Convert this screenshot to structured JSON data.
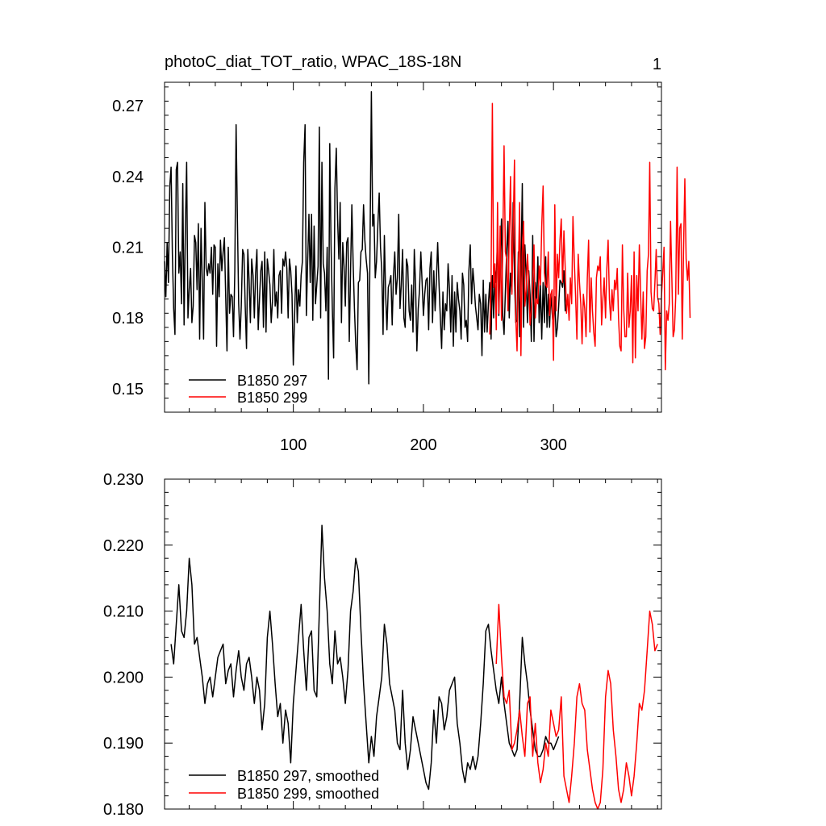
{
  "chart_data": [
    {
      "type": "line",
      "title": "photoC_diat_TOT_ratio, WPAC_18S-18N",
      "corner_label": "1",
      "xlim": [
        1,
        383
      ],
      "ylim": [
        0.14,
        0.28
      ],
      "x_ticks": [
        100,
        200,
        300
      ],
      "x_tick_labels": [
        "100",
        "200",
        "300"
      ],
      "y_ticks": [
        0.15,
        0.18,
        0.21,
        0.24,
        0.27
      ],
      "y_tick_labels": [
        "0.15",
        "0.18",
        "0.21",
        "0.24",
        "0.27"
      ],
      "legend_position": "bottom-left",
      "series": [
        {
          "name": "B1850 297",
          "color": "#000000",
          "x_start": 1,
          "values": [
            0.204,
            0.189,
            0.212,
            0.195,
            0.236,
            0.244,
            0.207,
            0.184,
            0.173,
            0.243,
            0.246,
            0.199,
            0.208,
            0.186,
            0.237,
            0.177,
            0.218,
            0.246,
            0.18,
            0.192,
            0.201,
            0.178,
            0.185,
            0.215,
            0.212,
            0.192,
            0.22,
            0.171,
            0.218,
            0.195,
            0.171,
            0.229,
            0.201,
            0.198,
            0.203,
            0.199,
            0.21,
            0.19,
            0.211,
            0.21,
            0.168,
            0.203,
            0.189,
            0.213,
            0.2,
            0.208,
            0.214,
            0.189,
            0.166,
            0.21,
            0.182,
            0.19,
            0.189,
            0.172,
            0.2,
            0.262,
            0.222,
            0.186,
            0.171,
            0.185,
            0.209,
            0.207,
            0.185,
            0.167,
            0.209,
            0.196,
            0.178,
            0.205,
            0.198,
            0.18,
            0.199,
            0.209,
            0.175,
            0.188,
            0.2,
            0.204,
            0.176,
            0.208,
            0.174,
            0.205,
            0.2,
            0.194,
            0.178,
            0.187,
            0.209,
            0.185,
            0.191,
            0.18,
            0.198,
            0.2,
            0.182,
            0.205,
            0.202,
            0.208,
            0.201,
            0.18,
            0.205,
            0.2,
            0.19,
            0.16,
            0.182,
            0.202,
            0.178,
            0.192,
            0.185,
            0.198,
            0.204,
            0.246,
            0.262,
            0.181,
            0.204,
            0.224,
            0.195,
            0.224,
            0.179,
            0.219,
            0.186,
            0.194,
            0.202,
            0.261,
            0.18,
            0.246,
            0.203,
            0.199,
            0.183,
            0.21,
            0.154,
            0.254,
            0.211,
            0.184,
            0.163,
            0.235,
            0.252,
            0.222,
            0.205,
            0.229,
            0.178,
            0.212,
            0.202,
            0.185,
            0.212,
            0.214,
            0.17,
            0.2,
            0.228,
            0.203,
            0.184,
            0.169,
            0.158,
            0.195,
            0.196,
            0.208,
            0.209,
            0.228,
            0.213,
            0.205,
            0.199,
            0.152,
            0.214,
            0.276,
            0.219,
            0.224,
            0.197,
            0.204,
            0.22,
            0.233,
            0.21,
            0.2,
            0.173,
            0.215,
            0.19,
            0.175,
            0.193,
            0.195,
            0.198,
            0.177,
            0.198,
            0.208,
            0.19,
            0.197,
            0.224,
            0.184,
            0.194,
            0.209,
            0.18,
            0.176,
            0.205,
            0.202,
            0.183,
            0.179,
            0.194,
            0.174,
            0.209,
            0.194,
            0.166,
            0.184,
            0.192,
            0.208,
            0.195,
            0.181,
            0.19,
            0.196,
            0.197,
            0.175,
            0.201,
            0.208,
            0.178,
            0.2,
            0.183,
            0.196,
            0.212,
            0.194,
            0.18,
            0.167,
            0.191,
            0.175,
            0.186,
            0.183,
            0.203,
            0.192,
            0.174,
            0.198,
            0.168,
            0.191,
            0.174,
            0.195,
            0.188,
            0.183,
            0.171,
            0.199,
            0.194,
            0.176,
            0.179,
            0.17,
            0.2,
            0.211,
            0.186,
            0.201,
            0.194,
            0.185,
            0.18,
            0.175,
            0.19,
            0.186,
            0.164,
            0.196,
            0.174,
            0.19,
            0.174,
            0.186,
            0.195,
            0.171,
            0.198,
            0.18,
            0.201,
            0.195,
            0.215,
            0.181,
            0.205,
            0.222,
            0.181,
            0.173,
            0.191,
            0.208,
            0.221,
            0.18,
            0.199,
            0.191,
            0.229,
            0.197,
            0.178,
            0.179,
            0.208,
            0.172,
            0.199,
            0.237,
            0.176,
            0.211,
            0.198,
            0.178,
            0.2,
            0.19,
            0.17,
            0.215,
            0.17,
            0.195,
            0.187,
            0.206,
            0.178,
            0.194,
            0.171,
            0.195,
            0.178,
            0.206,
            0.176,
            0.19,
            0.176,
            0.19,
            0.182,
            0.175,
            0.189,
            0.172,
            0.176,
            0.185,
            0.196,
            0.195,
            0.193,
            0.2,
            0.183,
            0.186
          ]
        },
        {
          "name": "B1850 299",
          "color": "#ff0000",
          "x_start": 251,
          "values": [
            0.173,
            0.196,
            0.271,
            0.193,
            0.203,
            0.175,
            0.229,
            0.182,
            0.219,
            0.179,
            0.211,
            0.253,
            0.208,
            0.205,
            0.183,
            0.216,
            0.24,
            0.19,
            0.218,
            0.247,
            0.18,
            0.166,
            0.199,
            0.229,
            0.164,
            0.208,
            0.221,
            0.185,
            0.192,
            0.207,
            0.196,
            0.177,
            0.183,
            0.196,
            0.211,
            0.18,
            0.188,
            0.186,
            0.202,
            0.194,
            0.219,
            0.236,
            0.199,
            0.194,
            0.193,
            0.208,
            0.181,
            0.19,
            0.192,
            0.162,
            0.228,
            0.183,
            0.207,
            0.197,
            0.213,
            0.222,
            0.195,
            0.217,
            0.201,
            0.182,
            0.19,
            0.179,
            0.197,
            0.186,
            0.223,
            0.204,
            0.189,
            0.171,
            0.207,
            0.195,
            0.186,
            0.169,
            0.19,
            0.184,
            0.172,
            0.197,
            0.213,
            0.174,
            0.197,
            0.183,
            0.174,
            0.168,
            0.197,
            0.202,
            0.2,
            0.206,
            0.177,
            0.188,
            0.197,
            0.18,
            0.201,
            0.213,
            0.188,
            0.179,
            0.192,
            0.183,
            0.196,
            0.192,
            0.201,
            0.18,
            0.168,
            0.166,
            0.211,
            0.184,
            0.172,
            0.172,
            0.199,
            0.176,
            0.183,
            0.198,
            0.161,
            0.208,
            0.163,
            0.198,
            0.183,
            0.211,
            0.19,
            0.171,
            0.191,
            0.167,
            0.172,
            0.2,
            0.207,
            0.246,
            0.191,
            0.184,
            0.183,
            0.195,
            0.209,
            0.189,
            0.186,
            0.173,
            0.189,
            0.199,
            0.21,
            0.158,
            0.183,
            0.179,
            0.186,
            0.221,
            0.197,
            0.172,
            0.175,
            0.189,
            0.244,
            0.19,
            0.218,
            0.22,
            0.171,
            0.209,
            0.239,
            0.205,
            0.196,
            0.204,
            0.18
          ]
        }
      ]
    },
    {
      "type": "line",
      "title": "",
      "xlim": [
        1,
        383
      ],
      "ylim": [
        0.18,
        0.23
      ],
      "x_ticks": [
        100,
        200,
        300
      ],
      "x_tick_labels": [
        "",
        "",
        ""
      ],
      "y_ticks": [
        0.18,
        0.19,
        0.2,
        0.21,
        0.22,
        0.23
      ],
      "y_tick_labels": [
        "0.180",
        "0.190",
        "0.200",
        "0.210",
        "0.220",
        "0.230"
      ],
      "legend_position": "bottom-left",
      "series": [
        {
          "name": "B1850 297, smoothed",
          "color": "#000000",
          "x": [
            6,
            8,
            10,
            12,
            14,
            16,
            18,
            20,
            22,
            24,
            26,
            28,
            30,
            32,
            34,
            36,
            38,
            40,
            42,
            44,
            46,
            48,
            50,
            52,
            54,
            56,
            58,
            60,
            62,
            64,
            66,
            68,
            70,
            72,
            74,
            76,
            78,
            80,
            82,
            84,
            86,
            88,
            90,
            92,
            94,
            96,
            98,
            100,
            102,
            104,
            106,
            108,
            110,
            112,
            114,
            116,
            118,
            120,
            122,
            124,
            126,
            128,
            130,
            132,
            134,
            136,
            138,
            140,
            142,
            144,
            146,
            148,
            150,
            152,
            154,
            156,
            158,
            160,
            162,
            164,
            166,
            168,
            170,
            172,
            174,
            176,
            178,
            180,
            182,
            184,
            186,
            188,
            190,
            192,
            194,
            196,
            198,
            200,
            202,
            204,
            206,
            208,
            210,
            212,
            214,
            216,
            218,
            220,
            222,
            224,
            226,
            228,
            230,
            232,
            234,
            236,
            238,
            240,
            242,
            244,
            246,
            248,
            250,
            252,
            254,
            256,
            258,
            260,
            262,
            264,
            266,
            268,
            270,
            272,
            274,
            276,
            278,
            280,
            282,
            284,
            286,
            288,
            290,
            292,
            294,
            296,
            298,
            300,
            302,
            304
          ],
          "values": [
            0.205,
            0.202,
            0.208,
            0.214,
            0.207,
            0.206,
            0.21,
            0.218,
            0.214,
            0.205,
            0.206,
            0.203,
            0.2,
            0.196,
            0.199,
            0.2,
            0.197,
            0.2,
            0.203,
            0.204,
            0.205,
            0.199,
            0.201,
            0.202,
            0.197,
            0.201,
            0.204,
            0.2,
            0.198,
            0.202,
            0.203,
            0.2,
            0.196,
            0.2,
            0.198,
            0.192,
            0.196,
            0.206,
            0.21,
            0.205,
            0.199,
            0.194,
            0.196,
            0.19,
            0.195,
            0.193,
            0.187,
            0.196,
            0.201,
            0.206,
            0.211,
            0.204,
            0.198,
            0.206,
            0.207,
            0.198,
            0.197,
            0.21,
            0.223,
            0.215,
            0.21,
            0.202,
            0.199,
            0.207,
            0.202,
            0.203,
            0.2,
            0.196,
            0.201,
            0.21,
            0.213,
            0.218,
            0.216,
            0.207,
            0.199,
            0.193,
            0.187,
            0.191,
            0.188,
            0.194,
            0.197,
            0.2,
            0.208,
            0.205,
            0.199,
            0.197,
            0.195,
            0.19,
            0.189,
            0.198,
            0.19,
            0.186,
            0.189,
            0.194,
            0.192,
            0.19,
            0.188,
            0.186,
            0.184,
            0.183,
            0.187,
            0.195,
            0.19,
            0.197,
            0.196,
            0.192,
            0.194,
            0.198,
            0.199,
            0.2,
            0.193,
            0.19,
            0.186,
            0.184,
            0.187,
            0.186,
            0.188,
            0.186,
            0.188,
            0.193,
            0.199,
            0.207,
            0.208,
            0.204,
            0.201,
            0.198,
            0.196,
            0.2,
            0.196,
            0.193,
            0.19,
            0.189,
            0.188,
            0.189,
            0.196,
            0.206,
            0.202,
            0.199,
            0.195,
            0.192,
            0.189,
            0.188,
            0.188,
            0.189,
            0.191,
            0.19,
            0.19,
            0.189,
            0.19,
            0.191
          ],
          "values_note": "black smoothed curve"
        },
        {
          "name": "B1850 299, smoothed",
          "color": "#ff0000",
          "x": [
            256,
            258,
            260,
            262,
            264,
            266,
            268,
            270,
            272,
            274,
            276,
            278,
            280,
            282,
            284,
            286,
            288,
            290,
            292,
            294,
            296,
            298,
            300,
            302,
            304,
            306,
            308,
            310,
            312,
            314,
            316,
            318,
            320,
            322,
            324,
            326,
            328,
            330,
            332,
            334,
            336,
            338,
            340,
            342,
            344,
            346,
            348,
            350,
            352,
            354,
            356,
            358,
            360,
            362,
            364,
            366,
            368,
            370,
            372,
            374,
            376,
            378,
            380
          ],
          "values": [
            0.202,
            0.211,
            0.203,
            0.197,
            0.196,
            0.198,
            0.189,
            0.19,
            0.192,
            0.195,
            0.191,
            0.188,
            0.196,
            0.197,
            0.188,
            0.193,
            0.187,
            0.184,
            0.186,
            0.19,
            0.188,
            0.195,
            0.193,
            0.191,
            0.192,
            0.197,
            0.185,
            0.183,
            0.181,
            0.185,
            0.19,
            0.197,
            0.199,
            0.196,
            0.195,
            0.189,
            0.186,
            0.183,
            0.181,
            0.18,
            0.181,
            0.186,
            0.197,
            0.201,
            0.199,
            0.192,
            0.188,
            0.183,
            0.181,
            0.183,
            0.187,
            0.185,
            0.182,
            0.185,
            0.19,
            0.196,
            0.195,
            0.198,
            0.204,
            0.21,
            0.208,
            0.204,
            0.205
          ]
        }
      ]
    }
  ]
}
